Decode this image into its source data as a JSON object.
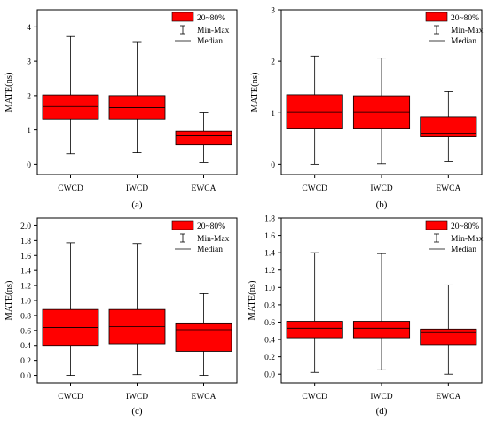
{
  "legend": {
    "box_label": "20~80%",
    "whisker_label": "Min-Max",
    "median_label": "Median",
    "box_color": "#ff0000"
  },
  "chart_data": [
    {
      "type": "box",
      "panel": "(a)",
      "ylabel": "MATE(ns)",
      "ylim": [
        -0.3,
        4.5
      ],
      "yticks": [
        0,
        1,
        2,
        3,
        4
      ],
      "ytick_labels": [
        "0",
        "1",
        "2",
        "3",
        "4"
      ],
      "categories": [
        "CWCD",
        "IWCD",
        "EWCA"
      ],
      "boxes": [
        {
          "min": 0.3,
          "q20": 1.32,
          "median": 1.68,
          "q80": 2.02,
          "max": 3.72
        },
        {
          "min": 0.33,
          "q20": 1.32,
          "median": 1.65,
          "q80": 2.0,
          "max": 3.57
        },
        {
          "min": 0.05,
          "q20": 0.56,
          "median": 0.85,
          "q80": 0.96,
          "max": 1.52
        }
      ]
    },
    {
      "type": "box",
      "panel": "(b)",
      "ylabel": "MATE(ns)",
      "ylim": [
        -0.2,
        3.0
      ],
      "yticks": [
        0,
        1,
        2,
        3
      ],
      "ytick_labels": [
        "0",
        "1",
        "2",
        "3"
      ],
      "categories": [
        "CWCD",
        "IWCD",
        "EWCA"
      ],
      "boxes": [
        {
          "min": 0.0,
          "q20": 0.7,
          "median": 1.02,
          "q80": 1.35,
          "max": 2.1
        },
        {
          "min": 0.01,
          "q20": 0.7,
          "median": 1.02,
          "q80": 1.33,
          "max": 2.06
        },
        {
          "min": 0.05,
          "q20": 0.53,
          "median": 0.6,
          "q80": 0.92,
          "max": 1.41
        }
      ]
    },
    {
      "type": "box",
      "panel": "(c)",
      "ylabel": "MATE(ns)",
      "ylim": [
        -0.1,
        2.1
      ],
      "yticks": [
        0,
        0.2,
        0.4,
        0.6,
        0.8,
        1.0,
        1.2,
        1.4,
        1.6,
        1.8,
        2.0
      ],
      "ytick_labels": [
        "0.0",
        "0.2",
        "0.4",
        "0.6",
        "0.8",
        "1.0",
        "1.2",
        "1.4",
        "1.6",
        "1.8",
        "2.0"
      ],
      "categories": [
        "CWCD",
        "IWCD",
        "EWCA"
      ],
      "boxes": [
        {
          "min": 0.0,
          "q20": 0.4,
          "median": 0.64,
          "q80": 0.88,
          "max": 1.77
        },
        {
          "min": 0.01,
          "q20": 0.42,
          "median": 0.65,
          "q80": 0.88,
          "max": 1.76
        },
        {
          "min": 0.0,
          "q20": 0.32,
          "median": 0.61,
          "q80": 0.7,
          "max": 1.09
        }
      ]
    },
    {
      "type": "box",
      "panel": "(d)",
      "ylabel": "MATE(ns)",
      "ylim": [
        -0.1,
        1.8
      ],
      "yticks": [
        0,
        0.2,
        0.4,
        0.6,
        0.8,
        1.0,
        1.2,
        1.4,
        1.6,
        1.8
      ],
      "ytick_labels": [
        "0.0",
        "0.2",
        "0.4",
        "0.6",
        "0.8",
        "1.0",
        "1.2",
        "1.4",
        "1.6",
        "1.8"
      ],
      "categories": [
        "CWCD",
        "IWCD",
        "EWCA"
      ],
      "boxes": [
        {
          "min": 0.02,
          "q20": 0.42,
          "median": 0.53,
          "q80": 0.61,
          "max": 1.4
        },
        {
          "min": 0.05,
          "q20": 0.42,
          "median": 0.53,
          "q80": 0.61,
          "max": 1.39
        },
        {
          "min": 0.0,
          "q20": 0.34,
          "median": 0.48,
          "q80": 0.52,
          "max": 1.03
        }
      ]
    }
  ]
}
